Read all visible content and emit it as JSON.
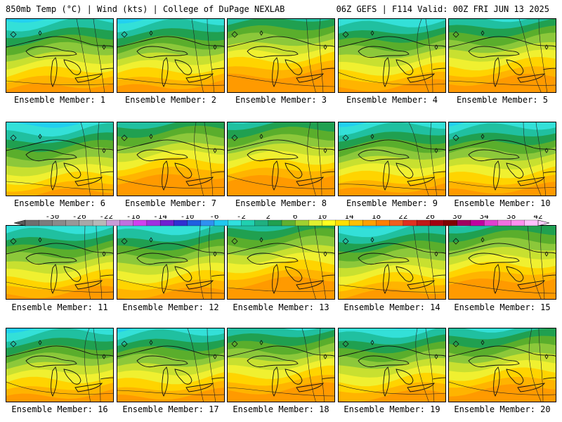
{
  "header": {
    "left": "850mb Temp (°C) | Wind (kts) | College of DuPage NEXLAB",
    "right": "06Z GEFS | F114 Valid: 00Z FRI JUN 13 2025"
  },
  "panels": [
    {
      "label": "Ensemble Member: 1",
      "tone": "cool"
    },
    {
      "label": "Ensemble Member: 2",
      "tone": "cool"
    },
    {
      "label": "Ensemble Member: 3",
      "tone": "warm"
    },
    {
      "label": "Ensemble Member: 4",
      "tone": "cool"
    },
    {
      "label": "Ensemble Member: 5",
      "tone": "mid"
    },
    {
      "label": "Ensemble Member: 6",
      "tone": "cold"
    },
    {
      "label": "Ensemble Member: 7",
      "tone": "warm"
    },
    {
      "label": "Ensemble Member: 8",
      "tone": "warm"
    },
    {
      "label": "Ensemble Member: 9",
      "tone": "cool"
    },
    {
      "label": "Ensemble Member: 10",
      "tone": "cool"
    },
    {
      "label": "Ensemble Member: 11",
      "tone": "cool"
    },
    {
      "label": "Ensemble Member: 12",
      "tone": "cool"
    },
    {
      "label": "Ensemble Member: 13",
      "tone": "warm"
    },
    {
      "label": "Ensemble Member: 14",
      "tone": "cool"
    },
    {
      "label": "Ensemble Member: 15",
      "tone": "warm"
    },
    {
      "label": "Ensemble Member: 16",
      "tone": "cool"
    },
    {
      "label": "Ensemble Member: 17",
      "tone": "cool"
    },
    {
      "label": "Ensemble Member: 18",
      "tone": "mid"
    },
    {
      "label": "Ensemble Member: 19",
      "tone": "cool"
    },
    {
      "label": "Ensemble Member: 20",
      "tone": "mid"
    }
  ],
  "colorbar": {
    "tick_labels": [
      "-30",
      "-26",
      "-22",
      "-18",
      "-14",
      "-10",
      "-6",
      "-2",
      "2",
      "6",
      "10",
      "14",
      "18",
      "22",
      "26",
      "30",
      "34",
      "38",
      "42"
    ],
    "colors": [
      "#6e6e6e",
      "#7c7c7c",
      "#8a8a8a",
      "#989898",
      "#a8a8a8",
      "#b8b8b8",
      "#c89cd8",
      "#c070e0",
      "#d040f0",
      "#a030e0",
      "#7020d0",
      "#3030d0",
      "#2060e0",
      "#3090f0",
      "#20c8f0",
      "#30e0e0",
      "#20d0b0",
      "#20b080",
      "#20a050",
      "#60b030",
      "#a0d030",
      "#e0f030",
      "#ffff20",
      "#ffe000",
      "#ffc000",
      "#ffa000",
      "#ff8000",
      "#f06020",
      "#e03020",
      "#c01818",
      "#a00010",
      "#800000",
      "#a00060",
      "#c000a0",
      "#e040d0",
      "#f070e0",
      "#ff90f0",
      "#ffc0ff"
    ]
  }
}
